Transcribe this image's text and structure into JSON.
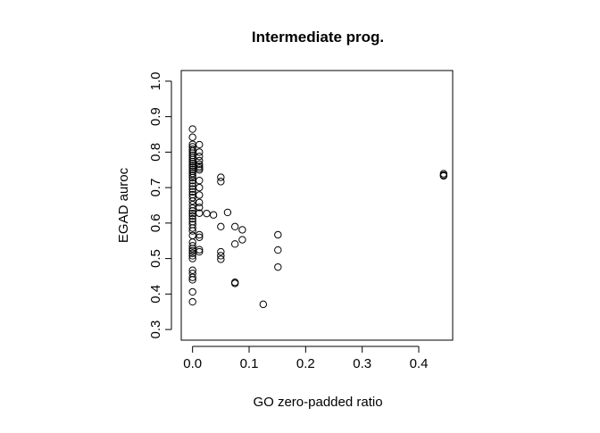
{
  "chart_data": {
    "type": "scatter",
    "title": "Intermediate prog.",
    "xlabel": "GO zero-padded ratio",
    "ylabel": "EGAD auroc",
    "xlim": [
      -0.02,
      0.46
    ],
    "ylim": [
      0.27,
      1.03
    ],
    "xticks": [
      0.0,
      0.1,
      0.2,
      0.3,
      0.4
    ],
    "xtick_labels": [
      "0.0",
      "0.1",
      "0.2",
      "0.3",
      "0.4"
    ],
    "yticks": [
      0.3,
      0.4,
      0.5,
      0.6,
      0.7,
      0.8,
      0.9,
      1.0
    ],
    "ytick_labels": [
      "0.3",
      "0.4",
      "0.5",
      "0.6",
      "0.7",
      "0.8",
      "0.9",
      "1.0"
    ],
    "grid": false,
    "legend": "none",
    "marker": "open-circle",
    "point_color": "#000000",
    "series": [
      {
        "points": [
          [
            0.0,
            0.865
          ],
          [
            0.0,
            0.842
          ],
          [
            0.0,
            0.822
          ],
          [
            0.0,
            0.815
          ],
          [
            0.0,
            0.808
          ],
          [
            0.0,
            0.803
          ],
          [
            0.0,
            0.797
          ],
          [
            0.0,
            0.791
          ],
          [
            0.0,
            0.785
          ],
          [
            0.0,
            0.779
          ],
          [
            0.0,
            0.773
          ],
          [
            0.0,
            0.768
          ],
          [
            0.0,
            0.762
          ],
          [
            0.0,
            0.757
          ],
          [
            0.0,
            0.751
          ],
          [
            0.0,
            0.746
          ],
          [
            0.0,
            0.74
          ],
          [
            0.0,
            0.734
          ],
          [
            0.0,
            0.728
          ],
          [
            0.0,
            0.72
          ],
          [
            0.0,
            0.712
          ],
          [
            0.0,
            0.704
          ],
          [
            0.0,
            0.696
          ],
          [
            0.0,
            0.688
          ],
          [
            0.0,
            0.68
          ],
          [
            0.0,
            0.672
          ],
          [
            0.0,
            0.662
          ],
          [
            0.0,
            0.652
          ],
          [
            0.0,
            0.642
          ],
          [
            0.0,
            0.634
          ],
          [
            0.0,
            0.627
          ],
          [
            0.0,
            0.62
          ],
          [
            0.0,
            0.612
          ],
          [
            0.0,
            0.604
          ],
          [
            0.0,
            0.596
          ],
          [
            0.0,
            0.586
          ],
          [
            0.0,
            0.578
          ],
          [
            0.0,
            0.565
          ],
          [
            0.0,
            0.546
          ],
          [
            0.0,
            0.536
          ],
          [
            0.0,
            0.528
          ],
          [
            0.0,
            0.522
          ],
          [
            0.0,
            0.515
          ],
          [
            0.0,
            0.508
          ],
          [
            0.0,
            0.5
          ],
          [
            0.0,
            0.467
          ],
          [
            0.0,
            0.458
          ],
          [
            0.0,
            0.447
          ],
          [
            0.0,
            0.44
          ],
          [
            0.0,
            0.406
          ],
          [
            0.0,
            0.378
          ],
          [
            0.012,
            0.821
          ],
          [
            0.012,
            0.8
          ],
          [
            0.012,
            0.788
          ],
          [
            0.012,
            0.776
          ],
          [
            0.012,
            0.766
          ],
          [
            0.012,
            0.76
          ],
          [
            0.012,
            0.755
          ],
          [
            0.012,
            0.75
          ],
          [
            0.012,
            0.72
          ],
          [
            0.012,
            0.7
          ],
          [
            0.012,
            0.679
          ],
          [
            0.012,
            0.658
          ],
          [
            0.012,
            0.644
          ],
          [
            0.012,
            0.628
          ],
          [
            0.012,
            0.567
          ],
          [
            0.012,
            0.56
          ],
          [
            0.012,
            0.525
          ],
          [
            0.012,
            0.519
          ],
          [
            0.025,
            0.627
          ],
          [
            0.037,
            0.623
          ],
          [
            0.05,
            0.729
          ],
          [
            0.05,
            0.717
          ],
          [
            0.05,
            0.59
          ],
          [
            0.05,
            0.519
          ],
          [
            0.05,
            0.508
          ],
          [
            0.05,
            0.498
          ],
          [
            0.062,
            0.63
          ],
          [
            0.075,
            0.59
          ],
          [
            0.075,
            0.541
          ],
          [
            0.075,
            0.433
          ],
          [
            0.075,
            0.43
          ],
          [
            0.088,
            0.581
          ],
          [
            0.088,
            0.553
          ],
          [
            0.125,
            0.371
          ],
          [
            0.151,
            0.567
          ],
          [
            0.151,
            0.524
          ],
          [
            0.151,
            0.476
          ],
          [
            0.444,
            0.739
          ],
          [
            0.444,
            0.735
          ],
          [
            0.444,
            0.733
          ]
        ]
      }
    ]
  }
}
